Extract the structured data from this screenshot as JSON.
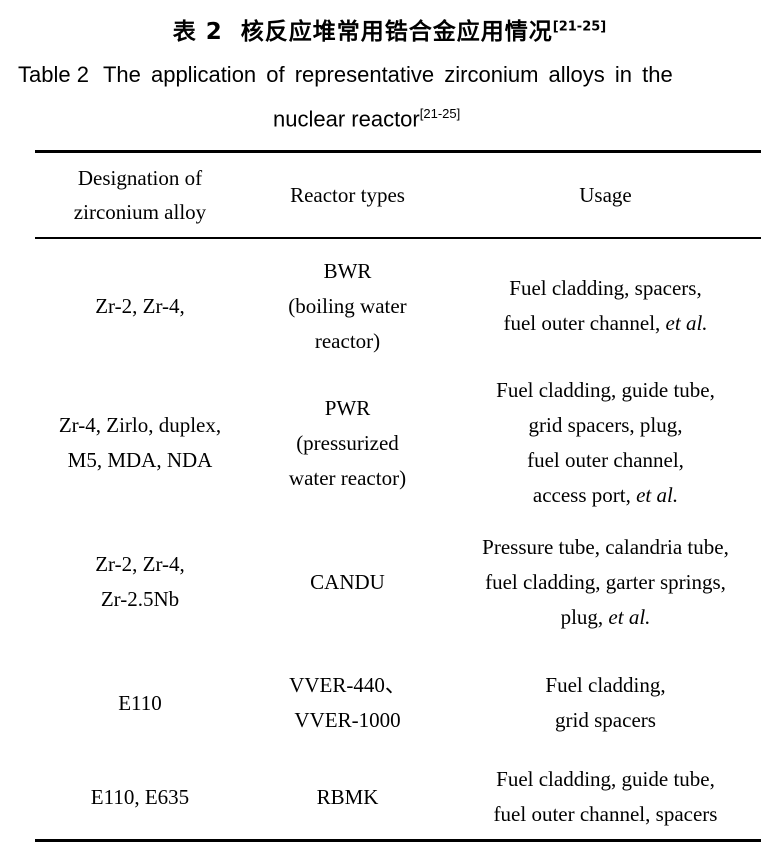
{
  "caption_zh": {
    "label": "表 2",
    "title": "核反应堆常用锆合金应用情况",
    "ref": "[21-25]"
  },
  "caption_en": {
    "label": "Table 2",
    "line1": "The application of representative zirconium alloys in the",
    "line2": "nuclear reactor",
    "ref": "[21-25]"
  },
  "table": {
    "columns": [
      "Designation of\nzirconium alloy",
      "Reactor types",
      "Usage"
    ],
    "rows": [
      {
        "alloy": [
          "Zr-2, Zr-4,"
        ],
        "reactor": [
          "BWR",
          "(boiling water",
          "reactor)"
        ],
        "usage": [
          [
            {
              "t": "Fuel cladding, spacers,"
            }
          ],
          [
            {
              "t": "fuel outer channel, "
            },
            {
              "t": "et al.",
              "i": true
            }
          ]
        ]
      },
      {
        "alloy": [
          "Zr-4, Zirlo, duplex,",
          "M5, MDA, NDA"
        ],
        "reactor": [
          "PWR",
          "(pressurized",
          "water reactor)"
        ],
        "usage": [
          [
            {
              "t": "Fuel cladding, guide tube,"
            }
          ],
          [
            {
              "t": "grid spacers, plug,"
            }
          ],
          [
            {
              "t": "fuel outer channel,"
            }
          ],
          [
            {
              "t": "access port, "
            },
            {
              "t": "et al.",
              "i": true
            }
          ]
        ]
      },
      {
        "alloy": [
          "Zr-2, Zr-4,",
          "Zr-2.5Nb"
        ],
        "reactor": [
          "CANDU"
        ],
        "usage": [
          [
            {
              "t": "Pressure tube, calandria tube,"
            }
          ],
          [
            {
              "t": "fuel cladding, garter springs,"
            }
          ],
          [
            {
              "t": "plug, "
            },
            {
              "t": "et al.",
              "i": true
            }
          ]
        ]
      },
      {
        "alloy": [
          "E110"
        ],
        "reactor": [
          "VVER-440、",
          "VVER-1000"
        ],
        "usage": [
          [
            {
              "t": "Fuel cladding,"
            }
          ],
          [
            {
              "t": "grid spacers"
            }
          ]
        ]
      },
      {
        "alloy": [
          "E110, E635"
        ],
        "reactor": [
          "RBMK"
        ],
        "usage": [
          [
            {
              "t": "Fuel cladding, guide tube,"
            }
          ],
          [
            {
              "t": "fuel outer channel, spacers"
            }
          ]
        ]
      }
    ]
  }
}
